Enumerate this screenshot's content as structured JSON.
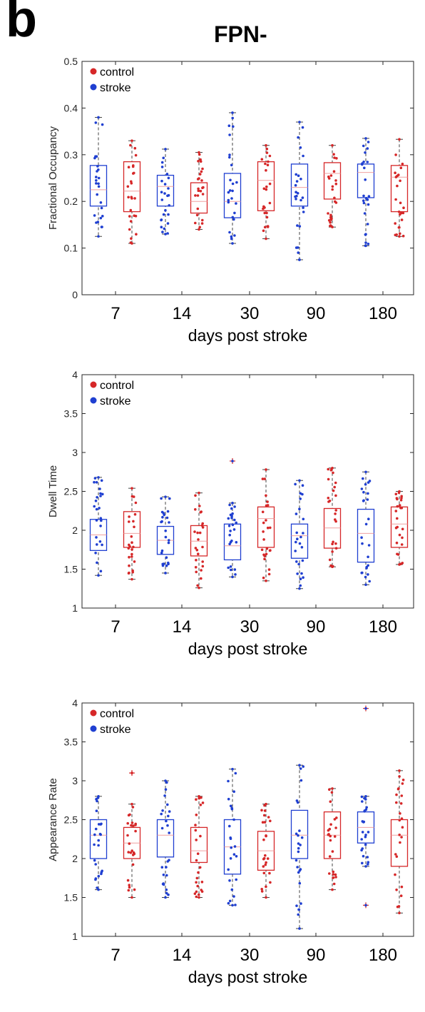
{
  "panel_label": "b",
  "title": "FPN-",
  "colors": {
    "control": "#d62728",
    "stroke": "#1f3fd1",
    "median": "#f0a0a0",
    "whisker": "#444444"
  },
  "chart_data": [
    {
      "type": "box",
      "ylabel": "Fractional Occupancy",
      "xlabel": "days post stroke",
      "ylim": [
        0,
        0.5
      ],
      "yticks": [
        "0",
        "0.1",
        "0.2",
        "0.3",
        "0.4",
        "0.5"
      ],
      "categories": [
        "7",
        "14",
        "30",
        "90",
        "180"
      ],
      "legend": [
        {
          "label": "control",
          "group": "control"
        },
        {
          "label": "stroke",
          "group": "stroke"
        }
      ],
      "legend_position": "top-left",
      "boxes": [
        {
          "day": "7",
          "group": "stroke",
          "min": 0.125,
          "q1": 0.19,
          "median": 0.225,
          "q3": 0.277,
          "max": 0.38,
          "outliers": []
        },
        {
          "day": "7",
          "group": "control",
          "min": 0.11,
          "q1": 0.178,
          "median": 0.222,
          "q3": 0.285,
          "max": 0.33,
          "outliers": []
        },
        {
          "day": "14",
          "group": "stroke",
          "min": 0.13,
          "q1": 0.19,
          "median": 0.232,
          "q3": 0.256,
          "max": 0.312,
          "outliers": []
        },
        {
          "day": "14",
          "group": "control",
          "min": 0.14,
          "q1": 0.175,
          "median": 0.2,
          "q3": 0.24,
          "max": 0.305,
          "outliers": []
        },
        {
          "day": "30",
          "group": "stroke",
          "min": 0.11,
          "q1": 0.165,
          "median": 0.2,
          "q3": 0.26,
          "max": 0.39,
          "outliers": []
        },
        {
          "day": "30",
          "group": "control",
          "min": 0.12,
          "q1": 0.18,
          "median": 0.245,
          "q3": 0.285,
          "max": 0.32,
          "outliers": []
        },
        {
          "day": "90",
          "group": "stroke",
          "min": 0.075,
          "q1": 0.19,
          "median": 0.23,
          "q3": 0.28,
          "max": 0.37,
          "outliers": []
        },
        {
          "day": "90",
          "group": "control",
          "min": 0.145,
          "q1": 0.205,
          "median": 0.26,
          "q3": 0.283,
          "max": 0.32,
          "outliers": []
        },
        {
          "day": "180",
          "group": "stroke",
          "min": 0.105,
          "q1": 0.208,
          "median": 0.262,
          "q3": 0.28,
          "max": 0.335,
          "outliers": []
        },
        {
          "day": "180",
          "group": "control",
          "min": 0.125,
          "q1": 0.178,
          "median": 0.252,
          "q3": 0.277,
          "max": 0.333,
          "outliers": []
        }
      ]
    },
    {
      "type": "box",
      "ylabel": "Dwell Time",
      "xlabel": "days post stroke",
      "ylim": [
        1,
        4
      ],
      "yticks": [
        "1",
        "1.5",
        "2",
        "2.5",
        "3",
        "3.5",
        "4"
      ],
      "categories": [
        "7",
        "14",
        "30",
        "90",
        "180"
      ],
      "legend": [
        {
          "label": "control",
          "group": "control"
        },
        {
          "label": "stroke",
          "group": "stroke"
        }
      ],
      "legend_position": "top-left",
      "boxes": [
        {
          "day": "7",
          "group": "stroke",
          "min": 1.42,
          "q1": 1.74,
          "median": 1.94,
          "q3": 2.14,
          "max": 2.68,
          "outliers": []
        },
        {
          "day": "7",
          "group": "control",
          "min": 1.37,
          "q1": 1.78,
          "median": 1.96,
          "q3": 2.24,
          "max": 2.54,
          "outliers": []
        },
        {
          "day": "14",
          "group": "stroke",
          "min": 1.45,
          "q1": 1.69,
          "median": 1.87,
          "q3": 2.05,
          "max": 2.43,
          "outliers": []
        },
        {
          "day": "14",
          "group": "control",
          "min": 1.26,
          "q1": 1.67,
          "median": 1.86,
          "q3": 2.06,
          "max": 2.48,
          "outliers": []
        },
        {
          "day": "30",
          "group": "stroke",
          "min": 1.4,
          "q1": 1.62,
          "median": 1.8,
          "q3": 2.08,
          "max": 2.35,
          "outliers": [
            2.89
          ]
        },
        {
          "day": "30",
          "group": "control",
          "min": 1.35,
          "q1": 1.78,
          "median": 2.15,
          "q3": 2.3,
          "max": 2.78,
          "outliers": []
        },
        {
          "day": "90",
          "group": "stroke",
          "min": 1.25,
          "q1": 1.64,
          "median": 1.93,
          "q3": 2.08,
          "max": 2.64,
          "outliers": []
        },
        {
          "day": "90",
          "group": "control",
          "min": 1.53,
          "q1": 1.77,
          "median": 2.03,
          "q3": 2.28,
          "max": 2.8,
          "outliers": []
        },
        {
          "day": "180",
          "group": "stroke",
          "min": 1.3,
          "q1": 1.59,
          "median": 1.96,
          "q3": 2.27,
          "max": 2.75,
          "outliers": []
        },
        {
          "day": "180",
          "group": "control",
          "min": 1.56,
          "q1": 1.78,
          "median": 2.08,
          "q3": 2.3,
          "max": 2.5,
          "outliers": []
        }
      ]
    },
    {
      "type": "box",
      "ylabel": "Appearance Rate",
      "xlabel": "days post stroke",
      "ylim": [
        1,
        4
      ],
      "yticks": [
        "1",
        "1.5",
        "2",
        "2.5",
        "3",
        "3.5",
        "4"
      ],
      "categories": [
        "7",
        "14",
        "30",
        "90",
        "180"
      ],
      "legend": [
        {
          "label": "control",
          "group": "control"
        },
        {
          "label": "stroke",
          "group": "stroke"
        }
      ],
      "legend_position": "top-left",
      "boxes": [
        {
          "day": "7",
          "group": "stroke",
          "min": 1.6,
          "q1": 2.0,
          "median": 2.3,
          "q3": 2.5,
          "max": 2.8,
          "outliers": []
        },
        {
          "day": "7",
          "group": "control",
          "min": 1.5,
          "q1": 2.0,
          "median": 2.2,
          "q3": 2.4,
          "max": 2.7,
          "outliers": [
            3.1
          ]
        },
        {
          "day": "14",
          "group": "stroke",
          "min": 1.5,
          "q1": 2.02,
          "median": 2.3,
          "q3": 2.5,
          "max": 3.0,
          "outliers": []
        },
        {
          "day": "14",
          "group": "control",
          "min": 1.5,
          "q1": 1.95,
          "median": 2.1,
          "q3": 2.4,
          "max": 2.8,
          "outliers": []
        },
        {
          "day": "30",
          "group": "stroke",
          "min": 1.4,
          "q1": 1.8,
          "median": 2.15,
          "q3": 2.5,
          "max": 3.15,
          "outliers": []
        },
        {
          "day": "30",
          "group": "control",
          "min": 1.5,
          "q1": 1.85,
          "median": 2.1,
          "q3": 2.35,
          "max": 2.7,
          "outliers": []
        },
        {
          "day": "90",
          "group": "stroke",
          "min": 1.1,
          "q1": 2.0,
          "median": 2.3,
          "q3": 2.62,
          "max": 3.2,
          "outliers": []
        },
        {
          "day": "90",
          "group": "control",
          "min": 1.6,
          "q1": 2.0,
          "median": 2.3,
          "q3": 2.6,
          "max": 2.9,
          "outliers": []
        },
        {
          "day": "180",
          "group": "stroke",
          "min": 1.9,
          "q1": 2.2,
          "median": 2.4,
          "q3": 2.6,
          "max": 2.8,
          "outliers": [
            1.4,
            3.93
          ]
        },
        {
          "day": "180",
          "group": "control",
          "min": 1.3,
          "q1": 1.9,
          "median": 2.3,
          "q3": 2.5,
          "max": 3.13,
          "outliers": []
        }
      ]
    }
  ]
}
